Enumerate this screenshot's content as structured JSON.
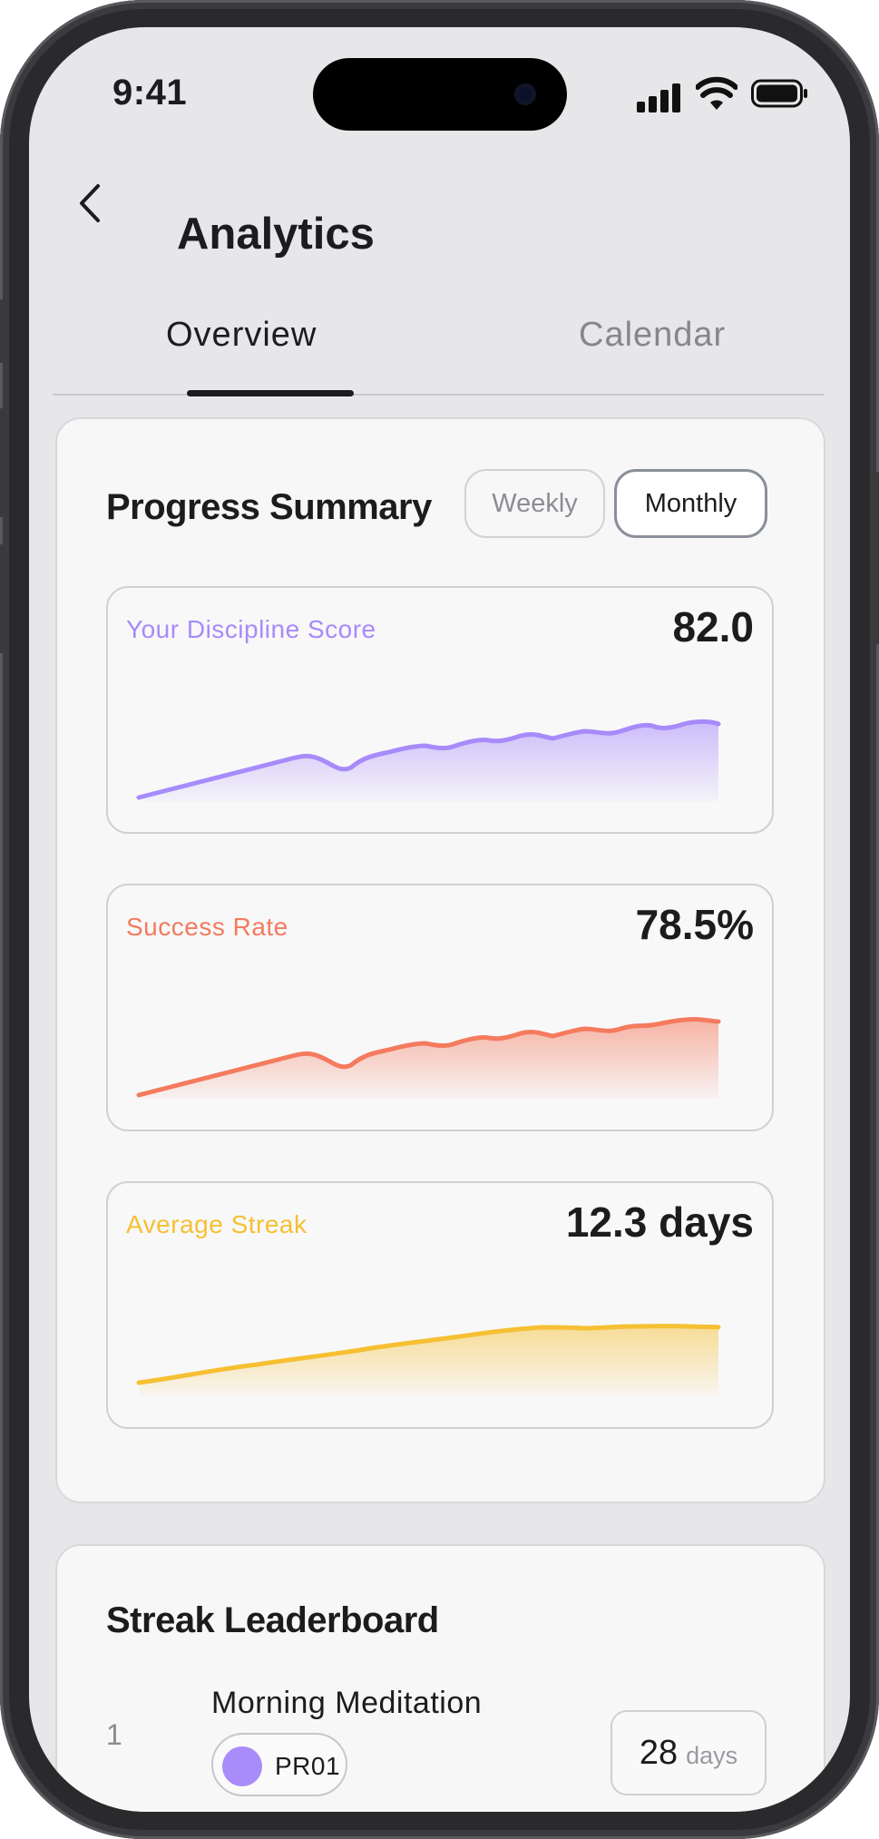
{
  "status_bar": {
    "time": "9:41"
  },
  "header": {
    "title": "Analytics",
    "back_icon": "chevron-left-icon"
  },
  "tabs": [
    {
      "label": "Overview",
      "active": true
    },
    {
      "label": "Calendar",
      "active": false
    }
  ],
  "progress_summary": {
    "title": "Progress Summary",
    "toggles": [
      {
        "label": "Weekly",
        "selected": false
      },
      {
        "label": "Monthly",
        "selected": true
      }
    ],
    "metrics": [
      {
        "label": "Your Discipline Score",
        "value": "82.0",
        "color": "#a78bfa"
      },
      {
        "label": "Success Rate",
        "value": "78.5%",
        "color": "#f47b5e"
      },
      {
        "label": "Average Streak",
        "value": "12.3 days",
        "color": "#f6c033"
      }
    ]
  },
  "leaderboard": {
    "title": "Streak Leaderboard",
    "items": [
      {
        "rank": "1",
        "name": "Morning Meditation",
        "code": "PR01",
        "dot_color": "#a98bfa",
        "days": "28",
        "unit": "days"
      }
    ]
  },
  "colors": {
    "background": "#e7e7ea",
    "card": "#f7f7f8",
    "text": "#1c1c1f"
  }
}
